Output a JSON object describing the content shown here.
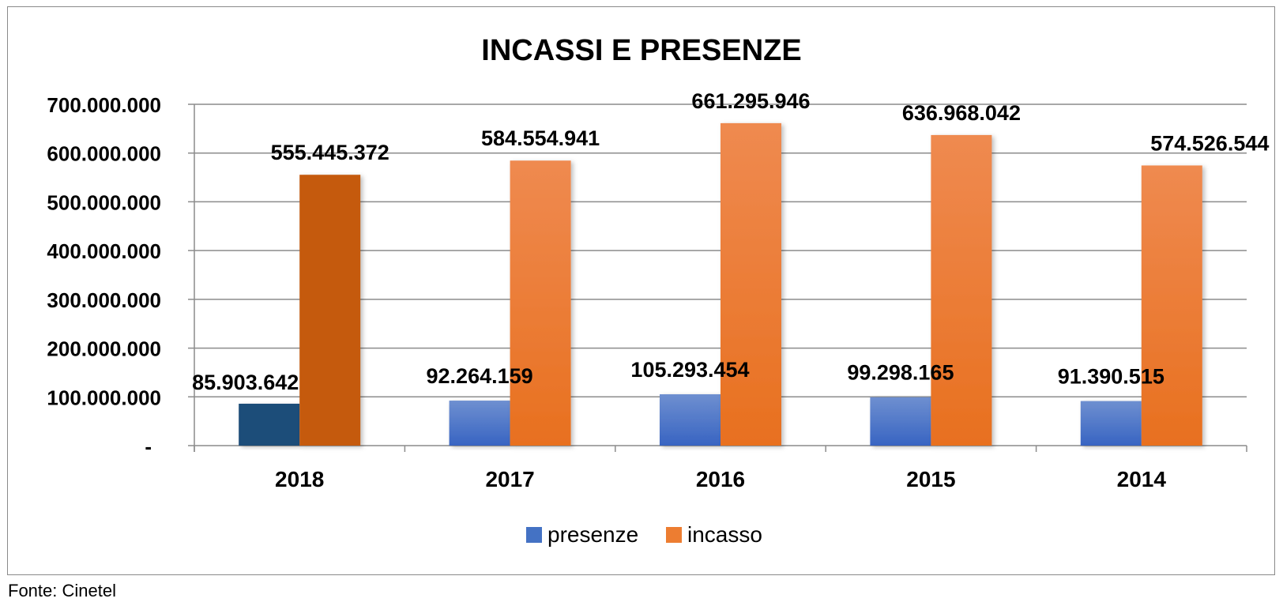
{
  "chart_data": {
    "type": "bar",
    "title": "INCASSI E PRESENZE",
    "xlabel": "",
    "ylabel": "",
    "ylim": [
      0,
      700000000
    ],
    "yticks": [
      0,
      100000000,
      200000000,
      300000000,
      400000000,
      500000000,
      600000000,
      700000000
    ],
    "ytick_labels": [
      "-",
      "100.000.000",
      "200.000.000",
      "300.000.000",
      "400.000.000",
      "500.000.000",
      "600.000.000",
      "700.000.000"
    ],
    "grid": true,
    "legend_position": "bottom",
    "categories": [
      "2018",
      "2017",
      "2016",
      "2015",
      "2014"
    ],
    "highlighted_category": "2018",
    "series": [
      {
        "name": "presenze",
        "color": "#4472C4",
        "highlight_color": "#1F4E79",
        "values": [
          85903642,
          92264159,
          105293454,
          99298165,
          91390515
        ],
        "labels": [
          "85.903.642",
          "92.264.159",
          "105.293.454",
          "99.298.165",
          "91.390.515"
        ]
      },
      {
        "name": "incasso",
        "color": "#ED7D31",
        "highlight_color": "#C55A11",
        "values": [
          555445372,
          584554941,
          661295946,
          636968042,
          574526544
        ],
        "labels": [
          "555.445.372",
          "584.554.941",
          "661.295.946",
          "636.968.042",
          "574.526.544"
        ]
      }
    ]
  },
  "source": "Fonte: Cinetel"
}
